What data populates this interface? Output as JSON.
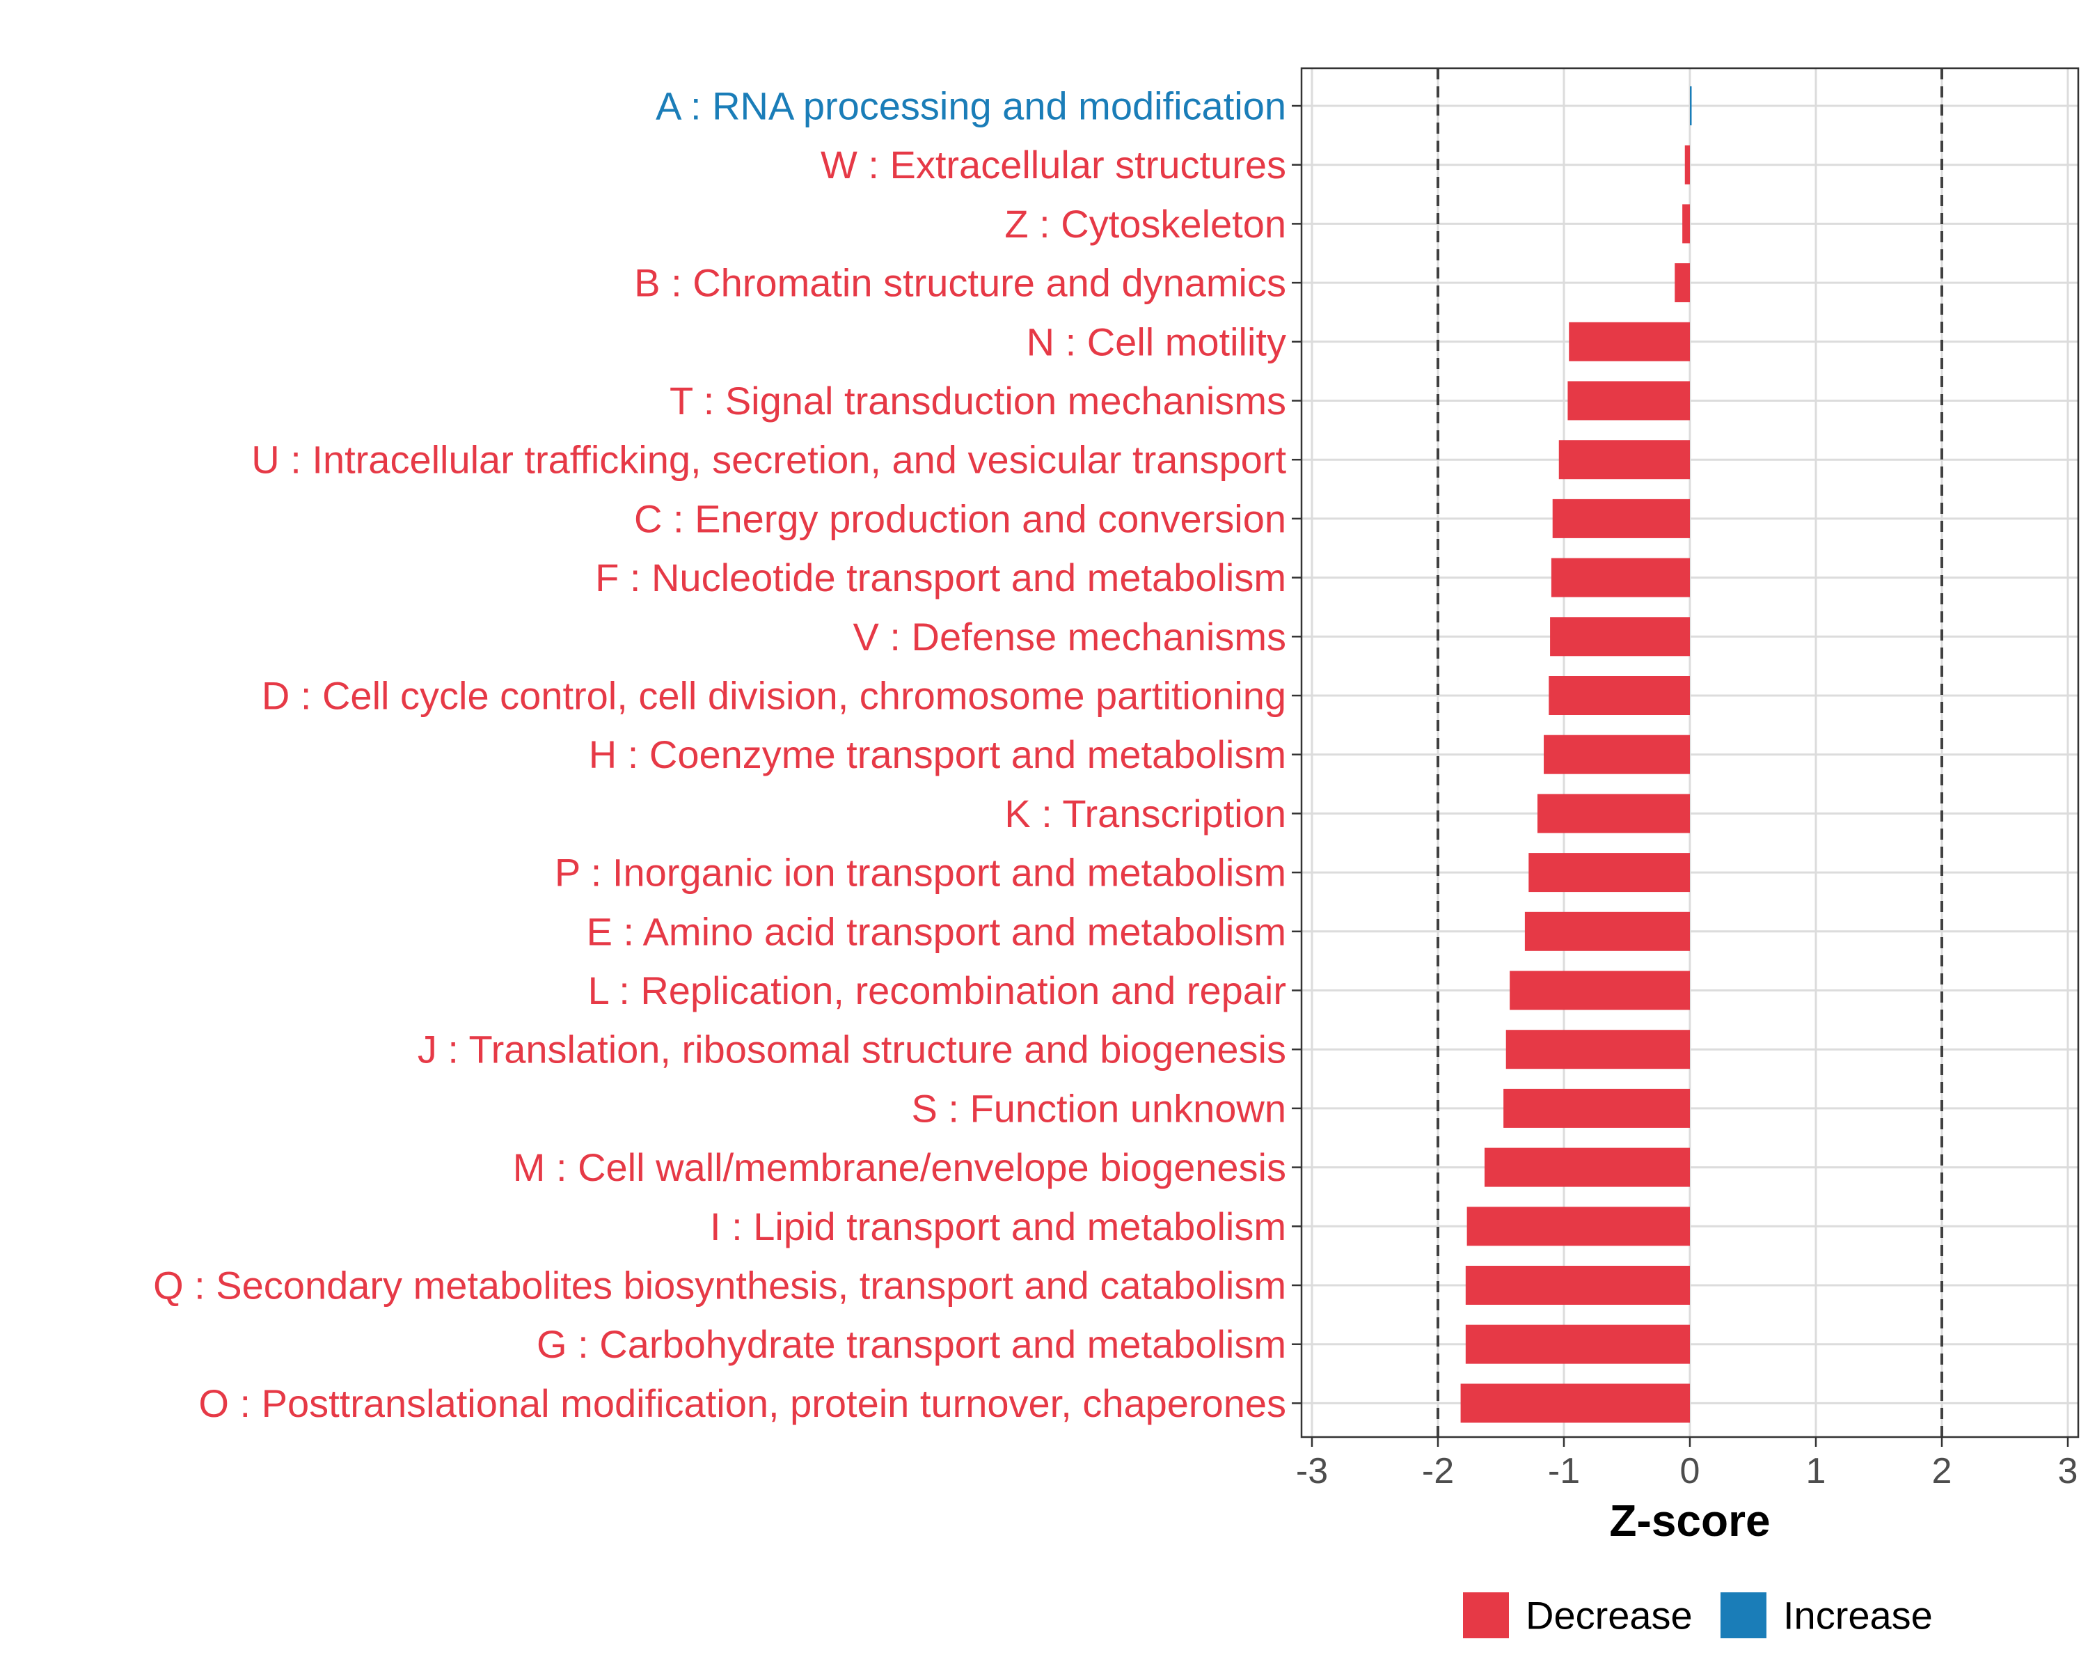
{
  "chart_data": {
    "type": "bar",
    "orientation": "horizontal",
    "title": "",
    "xlabel": "Z-score",
    "ylabel": "",
    "xlim": [
      -3,
      3
    ],
    "xticks": [
      -3,
      -2,
      -1,
      0,
      1,
      2,
      3
    ],
    "tick_labels": [
      "-3",
      "-2",
      "-1",
      "0",
      "1",
      "2",
      "3"
    ],
    "reference_lines": [
      -2,
      2
    ],
    "grid": true,
    "legend_position": "bottom",
    "legend": [
      {
        "name": "Decrease",
        "color": "#E63946"
      },
      {
        "name": "Increase",
        "color": "#1A7DB8"
      }
    ],
    "categories": [
      "A : RNA processing and modification",
      "W : Extracellular structures",
      "Z : Cytoskeleton",
      "B : Chromatin structure and dynamics",
      "N : Cell motility",
      "T : Signal transduction mechanisms",
      "U : Intracellular trafficking, secretion, and vesicular transport",
      "C : Energy production and conversion",
      "F : Nucleotide transport and metabolism",
      "V : Defense mechanisms",
      "D : Cell cycle control, cell division, chromosome partitioning",
      "H : Coenzyme transport and metabolism",
      "K : Transcription",
      "P : Inorganic ion transport and metabolism",
      "E : Amino acid transport and metabolism",
      "L : Replication, recombination and repair",
      "J : Translation, ribosomal structure and biogenesis",
      "S : Function unknown",
      "M : Cell wall/membrane/envelope biogenesis",
      "I : Lipid transport and metabolism",
      "Q : Secondary metabolites biosynthesis, transport and catabolism",
      "G : Carbohydrate transport and metabolism",
      "O : Posttranslational modification, protein turnover, chaperones"
    ],
    "values": [
      0.01,
      -0.04,
      -0.06,
      -0.12,
      -0.96,
      -0.97,
      -1.04,
      -1.09,
      -1.1,
      -1.11,
      -1.12,
      -1.16,
      -1.21,
      -1.28,
      -1.31,
      -1.43,
      -1.46,
      -1.48,
      -1.63,
      -1.77,
      -1.78,
      -1.78,
      -1.82
    ],
    "groups": [
      "Increase",
      "Decrease",
      "Decrease",
      "Decrease",
      "Decrease",
      "Decrease",
      "Decrease",
      "Decrease",
      "Decrease",
      "Decrease",
      "Decrease",
      "Decrease",
      "Decrease",
      "Decrease",
      "Decrease",
      "Decrease",
      "Decrease",
      "Decrease",
      "Decrease",
      "Decrease",
      "Decrease",
      "Decrease",
      "Decrease"
    ]
  }
}
